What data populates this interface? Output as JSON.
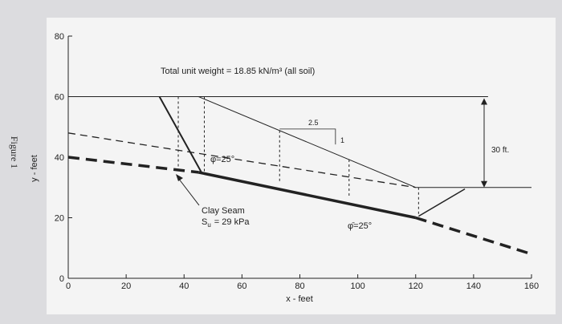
{
  "figure_label": "Figure 1",
  "axes": {
    "xlabel": "x - feet",
    "ylabel": "y - feet",
    "xlim": [
      0,
      160
    ],
    "ylim": [
      0,
      80
    ],
    "xticks": [
      0,
      20,
      40,
      60,
      80,
      100,
      120,
      140,
      160
    ],
    "yticks": [
      0,
      20,
      40,
      60,
      80
    ]
  },
  "annotations": {
    "unit_weight": "Total unit weight = 18.85 kN/m³ (all soil)",
    "slope_run": "2.5",
    "slope_rise": "1",
    "height": "30 ft.",
    "phi_upper": "φ̄=25°",
    "phi_lower": "φ̄=25°",
    "clay_seam": "Clay Seam",
    "su_symbol": "S",
    "su_subscript": "u",
    "su_value": "= 29 kPa"
  }
}
